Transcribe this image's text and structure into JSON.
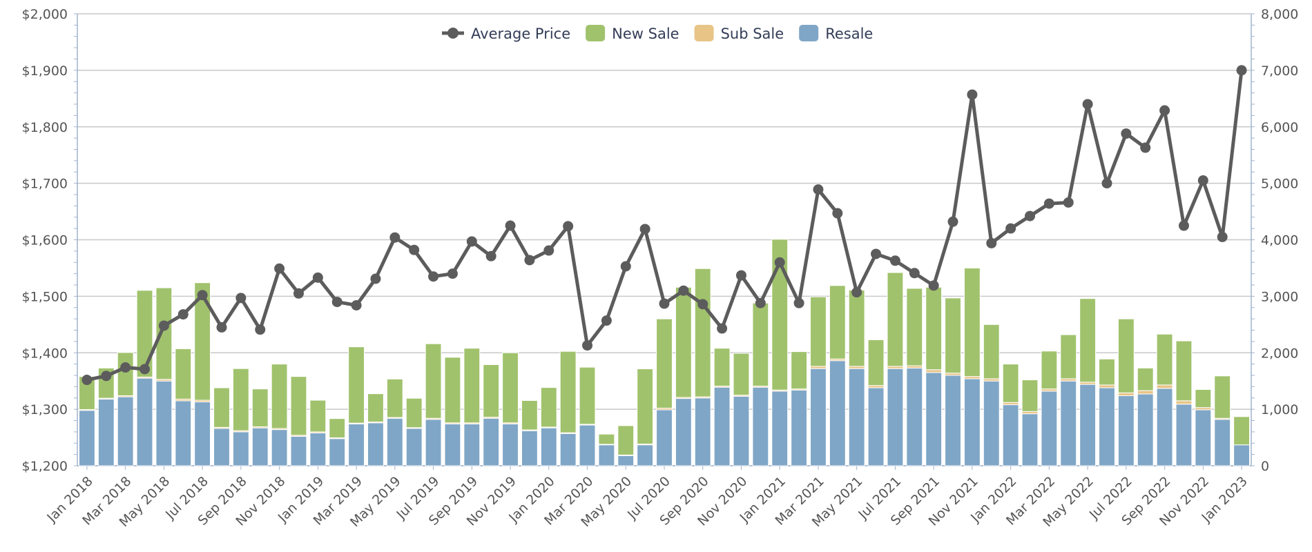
{
  "chart_data": {
    "type": "bar",
    "stacked": true,
    "x": [
      "Jan 2018",
      "Feb 2018",
      "Mar 2018",
      "Apr 2018",
      "May 2018",
      "Jun 2018",
      "Jul 2018",
      "Aug 2018",
      "Sep 2018",
      "Oct 2018",
      "Nov 2018",
      "Dec 2018",
      "Jan 2019",
      "Feb 2019",
      "Mar 2019",
      "Apr 2019",
      "May 2019",
      "Jun 2019",
      "Jul 2019",
      "Aug 2019",
      "Sep 2019",
      "Oct 2019",
      "Nov 2019",
      "Dec 2019",
      "Jan 2020",
      "Feb 2020",
      "Mar 2020",
      "Apr 2020",
      "May 2020",
      "Jun 2020",
      "Jul 2020",
      "Aug 2020",
      "Sep 2020",
      "Oct 2020",
      "Nov 2020",
      "Dec 2020",
      "Jan 2021",
      "Feb 2021",
      "Mar 2021",
      "Apr 2021",
      "May 2021",
      "Jun 2021",
      "Jul 2021",
      "Aug 2021",
      "Sep 2021",
      "Oct 2021",
      "Nov 2021",
      "Dec 2021",
      "Jan 2022",
      "Feb 2022",
      "Mar 2022",
      "Apr 2022",
      "May 2022",
      "Jun 2022",
      "Jul 2022",
      "Aug 2022",
      "Sep 2022",
      "Oct 2022",
      "Nov 2022",
      "Dec 2022",
      "Jan 2023"
    ],
    "x_tick_labels": [
      "Jan 2018",
      "Mar 2018",
      "May 2018",
      "Jul 2018",
      "Sep 2018",
      "Nov 2018",
      "Jan 2019",
      "Mar 2019",
      "May 2019",
      "Jul 2019",
      "Sep 2019",
      "Nov 2019",
      "Jan 2020",
      "Mar 2020",
      "May 2020",
      "Jul 2020",
      "Sep 2020",
      "Nov 2020",
      "Jan 2021",
      "Mar 2021",
      "May 2021",
      "Jul 2021",
      "Sep 2021",
      "Nov 2021",
      "Jan 2022",
      "Mar 2022",
      "May 2022",
      "Jul 2022",
      "Sep 2022",
      "Nov 2022",
      "Jan 2023"
    ],
    "y_left": {
      "range": [
        1200,
        2000
      ],
      "tick_labels": [
        "$1,200",
        "$1,300",
        "$1,400",
        "$1,500",
        "$1,600",
        "$1,700",
        "$1,800",
        "$1,900",
        "$2,000"
      ]
    },
    "y_right": {
      "range": [
        0,
        8000
      ],
      "tick_labels": [
        "0",
        "1,000",
        "2,000",
        "3,000",
        "4,000",
        "5,000",
        "6,000",
        "7,000",
        "8,000"
      ]
    },
    "grid": true,
    "legend_position": "top-center",
    "series": [
      {
        "name": "Resale",
        "type": "bar",
        "axis": "right",
        "color": "#7fa6c6",
        "values": [
          980,
          1180,
          1220,
          1550,
          1500,
          1150,
          1130,
          660,
          600,
          670,
          640,
          520,
          580,
          480,
          740,
          760,
          840,
          660,
          820,
          740,
          740,
          840,
          740,
          620,
          670,
          570,
          720,
          370,
          180,
          370,
          990,
          1190,
          1200,
          1390,
          1230,
          1390,
          1320,
          1340,
          1720,
          1860,
          1720,
          1380,
          1720,
          1730,
          1650,
          1600,
          1540,
          1500,
          1080,
          920,
          1320,
          1500,
          1440,
          1380,
          1240,
          1270,
          1370,
          1090,
          990,
          820,
          370
        ]
      },
      {
        "name": "Sub Sale",
        "type": "bar",
        "axis": "right",
        "color": "#e8c487",
        "values": [
          15,
          15,
          20,
          20,
          30,
          30,
          30,
          20,
          20,
          20,
          20,
          20,
          20,
          15,
          15,
          15,
          15,
          15,
          20,
          20,
          20,
          20,
          20,
          15,
          15,
          15,
          15,
          10,
          10,
          15,
          30,
          20,
          20,
          20,
          20,
          20,
          20,
          20,
          40,
          30,
          40,
          40,
          40,
          40,
          50,
          40,
          40,
          40,
          40,
          40,
          40,
          40,
          40,
          50,
          50,
          60,
          60,
          60,
          40,
          20,
          0
        ]
      },
      {
        "name": "New Sale",
        "type": "bar",
        "axis": "right",
        "color": "#a1c26d",
        "values": [
          585,
          535,
          765,
          1535,
          1620,
          890,
          2080,
          700,
          1100,
          670,
          1140,
          1040,
          560,
          340,
          1350,
          500,
          680,
          520,
          1320,
          1160,
          1320,
          930,
          1240,
          520,
          700,
          1440,
          1010,
          180,
          520,
          1330,
          1580,
          1950,
          2270,
          670,
          740,
          1470,
          2670,
          660,
          1230,
          1300,
          1350,
          810,
          1660,
          1370,
          1460,
          1330,
          1920,
          960,
          680,
          560,
          670,
          780,
          1480,
          460,
          1310,
          400,
          900,
          1060,
          320,
          750,
          500
        ]
      },
      {
        "name": "Average Price",
        "type": "line",
        "axis": "left",
        "color": "#5c5c5c",
        "values": [
          1352,
          1359,
          1374,
          1371,
          1448,
          1468,
          1502,
          1445,
          1497,
          1441,
          1549,
          1505,
          1533,
          1490,
          1484,
          1531,
          1604,
          1582,
          1535,
          1540,
          1597,
          1571,
          1625,
          1564,
          1581,
          1624,
          1413,
          1457,
          1553,
          1619,
          1487,
          1510,
          1486,
          1443,
          1537,
          1488,
          1560,
          1488,
          1689,
          1647,
          1507,
          1575,
          1563,
          1541,
          1519,
          1632,
          1857,
          1594,
          1620,
          1642,
          1664,
          1666,
          1840,
          1700,
          1788,
          1763,
          1829,
          1625,
          1705,
          1605,
          1900
        ]
      }
    ],
    "legend_order": [
      "Average Price",
      "New Sale",
      "Sub Sale",
      "Resale"
    ]
  }
}
